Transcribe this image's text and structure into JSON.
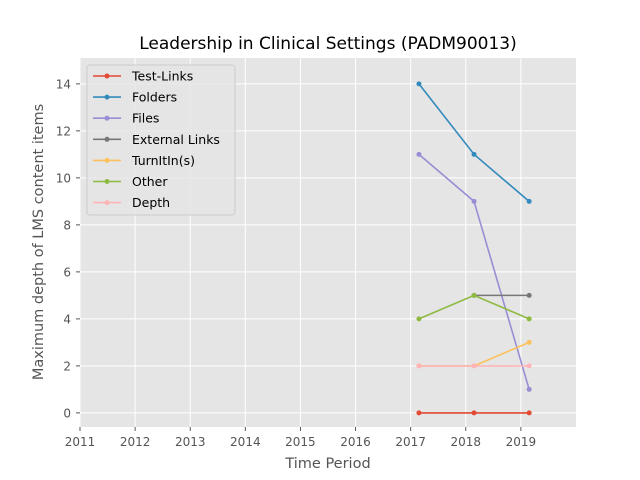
{
  "chart_data": {
    "type": "line",
    "title": "Leadership in Clinical Settings (PADM90013)",
    "xlabel": "Time Period",
    "ylabel": "Maximum depth of LMS content items",
    "xlim": [
      2011,
      2020
    ],
    "ylim": [
      -0.6,
      15.1
    ],
    "x_ticks": [
      2011,
      2012,
      2013,
      2014,
      2015,
      2016,
      2017,
      2018,
      2019
    ],
    "y_ticks": [
      0,
      2,
      4,
      6,
      8,
      10,
      12,
      14
    ],
    "grid": true,
    "legend_position": "upper-left",
    "series": [
      {
        "name": "Test-Links",
        "color": "#E24A33",
        "x": [
          2017.15,
          2018.15,
          2019.15
        ],
        "y": [
          0,
          0,
          0
        ]
      },
      {
        "name": "Folders",
        "color": "#348ABD",
        "x": [
          2017.15,
          2018.15,
          2019.15
        ],
        "y": [
          14,
          11,
          9
        ]
      },
      {
        "name": "Files",
        "color": "#988ED5",
        "x": [
          2017.15,
          2018.15,
          2019.15
        ],
        "y": [
          11,
          9,
          1
        ]
      },
      {
        "name": "External Links",
        "color": "#777777",
        "x": [
          2018.15,
          2019.15
        ],
        "y": [
          5,
          5
        ]
      },
      {
        "name": "TurnItIn(s)",
        "color": "#FBC15E",
        "x": [
          2017.15,
          2018.15,
          2019.15
        ],
        "y": [
          2,
          2,
          3
        ]
      },
      {
        "name": "Other",
        "color": "#8EBA42",
        "x": [
          2017.15,
          2018.15,
          2019.15
        ],
        "y": [
          4,
          5,
          4
        ]
      },
      {
        "name": "Depth",
        "color": "#FFB5B8",
        "x": [
          2017.15,
          2018.15,
          2019.15
        ],
        "y": [
          2,
          2,
          2
        ]
      }
    ]
  }
}
